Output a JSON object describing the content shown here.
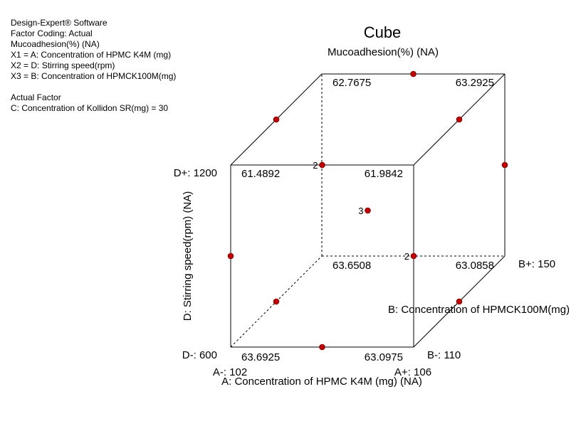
{
  "info_lines": [
    "Design-Expert® Software",
    "Factor Coding: Actual",
    "Mucoadhesion(%) (NA)",
    "X1 = A: Concentration of HPMC K4M (mg)",
    "X2 = D: Stirring speed(rpm)",
    "X3 = B: Concentration of HPMCK100M(mg)",
    "",
    "Actual Factor",
    "C: Concentration of Kollidon SR(mg) = 30"
  ],
  "chart_data": {
    "type": "cube",
    "title": "Cube",
    "subtitle": "Mucoadhesion(%) (NA)",
    "axes": {
      "x": {
        "label": "A: Concentration of HPMC K4M (mg) (NA)",
        "low_label": "A-: 102",
        "high_label": "A+: 106",
        "low": 102,
        "high": 106
      },
      "y": {
        "label": "D: Stirring speed(rpm) (NA)",
        "low_label": "D-: 600",
        "high_label": "D+: 1200",
        "low": 600,
        "high": 1200
      },
      "z": {
        "label": "B: Concentration of HPMCK100M(mg)",
        "low_label": "B-: 110",
        "high_label": "B+: 150",
        "low": 110,
        "high": 150
      }
    },
    "corners": [
      {
        "a": -1,
        "d": -1,
        "b": -1,
        "value": "63.6925"
      },
      {
        "a": 1,
        "d": -1,
        "b": -1,
        "value": "63.0975"
      },
      {
        "a": -1,
        "d": 1,
        "b": -1,
        "value": "61.4892"
      },
      {
        "a": 1,
        "d": 1,
        "b": -1,
        "value": "61.9842"
      },
      {
        "a": -1,
        "d": -1,
        "b": 1,
        "value": "63.6508"
      },
      {
        "a": 1,
        "d": -1,
        "b": 1,
        "value": "63.0858"
      },
      {
        "a": -1,
        "d": 1,
        "b": 1,
        "value": "62.7675"
      },
      {
        "a": 1,
        "d": 1,
        "b": 1,
        "value": "63.2925"
      }
    ],
    "design_points": [
      {
        "a": 0,
        "d": -1,
        "b": -1,
        "count": ""
      },
      {
        "a": -1,
        "d": 0,
        "b": -1,
        "count": ""
      },
      {
        "a": 1,
        "d": 0,
        "b": -1,
        "count": "2"
      },
      {
        "a": 0,
        "d": 1,
        "b": -1,
        "count": "2"
      },
      {
        "a": -1,
        "d": -1,
        "b": 0,
        "count": ""
      },
      {
        "a": 1,
        "d": -1,
        "b": 0,
        "count": ""
      },
      {
        "a": -1,
        "d": 1,
        "b": 0,
        "count": ""
      },
      {
        "a": 1,
        "d": 1,
        "b": 0,
        "count": ""
      },
      {
        "a": 0,
        "d": 1,
        "b": 1,
        "count": ""
      },
      {
        "a": 1,
        "d": 0,
        "b": 1,
        "count": ""
      },
      {
        "a": 0,
        "d": 0,
        "b": 0,
        "count": "3"
      }
    ],
    "point_color": "#c00000"
  }
}
